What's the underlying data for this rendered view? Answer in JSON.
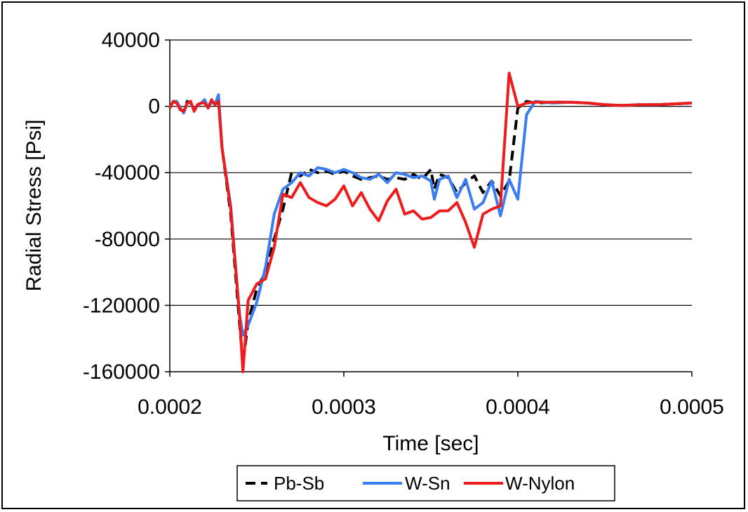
{
  "chart_data": {
    "type": "line",
    "xlabel": "Time [sec]",
    "ylabel": "Radial Stress [Psi]",
    "xlim": [
      0.0002,
      0.0005
    ],
    "ylim": [
      -160000,
      40000
    ],
    "x_ticks": [
      0.0002,
      0.0003,
      0.0004,
      0.0005
    ],
    "x_tick_labels": [
      "0.0002",
      "0.0003",
      "0.0004",
      "0.0005"
    ],
    "y_ticks": [
      40000,
      0,
      -40000,
      -80000,
      -120000,
      -160000
    ],
    "y_tick_labels": [
      "40000",
      "0",
      "-40000",
      "-80000",
      "-120000",
      "-160000"
    ],
    "grid": "horizontal",
    "legend_position": "bottom",
    "series": [
      {
        "name": "Pb-Sb",
        "color": "#000000",
        "dash": "dashed",
        "points": [
          [
            0.0002,
            -1000
          ],
          [
            0.000202,
            3000
          ],
          [
            0.000204,
            2000
          ],
          [
            0.000206,
            -2000
          ],
          [
            0.000208,
            -3000
          ],
          [
            0.00021,
            3000
          ],
          [
            0.000212,
            2000
          ],
          [
            0.000214,
            -2000
          ],
          [
            0.000216,
            1000
          ],
          [
            0.000218,
            2000
          ],
          [
            0.00022,
            3000
          ],
          [
            0.000222,
            -1000
          ],
          [
            0.000224,
            3000
          ],
          [
            0.000226,
            1000
          ],
          [
            0.000228,
            5000
          ],
          [
            0.00023,
            -25000
          ],
          [
            0.000235,
            -65000
          ],
          [
            0.00024,
            -130000
          ],
          [
            0.000242,
            -155000
          ],
          [
            0.000245,
            -130000
          ],
          [
            0.00025,
            -110000
          ],
          [
            0.000255,
            -100000
          ],
          [
            0.00026,
            -80000
          ],
          [
            0.000265,
            -62000
          ],
          [
            0.00027,
            -40000
          ],
          [
            0.000275,
            -42000
          ],
          [
            0.00028,
            -38000
          ],
          [
            0.000285,
            -40000
          ],
          [
            0.00029,
            -39000
          ],
          [
            0.000295,
            -41000
          ],
          [
            0.0003,
            -39000
          ],
          [
            0.000305,
            -42000
          ],
          [
            0.00031,
            -44000
          ],
          [
            0.000315,
            -43000
          ],
          [
            0.00032,
            -42000
          ],
          [
            0.000325,
            -44000
          ],
          [
            0.00033,
            -43000
          ],
          [
            0.000335,
            -44000
          ],
          [
            0.00034,
            -41000
          ],
          [
            0.000345,
            -44000
          ],
          [
            0.00035,
            -38000
          ],
          [
            0.000352,
            -50000
          ],
          [
            0.000355,
            -41000
          ],
          [
            0.00036,
            -43000
          ],
          [
            0.000365,
            -52000
          ],
          [
            0.00037,
            -46000
          ],
          [
            0.000375,
            -42000
          ],
          [
            0.00038,
            -52000
          ],
          [
            0.000385,
            -45000
          ],
          [
            0.00039,
            -54000
          ],
          [
            0.000395,
            -45000
          ],
          [
            0.0004,
            -1000
          ],
          [
            0.000405,
            3000
          ],
          [
            0.00041,
            2000
          ],
          [
            0.00042,
            2500
          ],
          [
            0.00043,
            2500
          ],
          [
            0.00044,
            2000
          ],
          [
            0.00045,
            1000
          ],
          [
            0.00046,
            500
          ],
          [
            0.00047,
            1000
          ],
          [
            0.00048,
            1000
          ],
          [
            0.00049,
            1500
          ],
          [
            0.0005,
            2000
          ]
        ]
      },
      {
        "name": "W-Sn",
        "color": "#3b7df0",
        "dash": "solid",
        "points": [
          [
            0.0002,
            -1000
          ],
          [
            0.000202,
            3000
          ],
          [
            0.000204,
            3000
          ],
          [
            0.000206,
            -1000
          ],
          [
            0.000208,
            -4000
          ],
          [
            0.00021,
            2000
          ],
          [
            0.000212,
            2000
          ],
          [
            0.000214,
            -2000
          ],
          [
            0.000216,
            1000
          ],
          [
            0.000218,
            2000
          ],
          [
            0.00022,
            4000
          ],
          [
            0.000222,
            -1000
          ],
          [
            0.000224,
            3000
          ],
          [
            0.000226,
            1000
          ],
          [
            0.000228,
            7000
          ],
          [
            0.00023,
            -25000
          ],
          [
            0.000235,
            -60000
          ],
          [
            0.00024,
            -125000
          ],
          [
            0.000242,
            -138000
          ],
          [
            0.000245,
            -132000
          ],
          [
            0.00025,
            -118000
          ],
          [
            0.000255,
            -97000
          ],
          [
            0.00026,
            -65000
          ],
          [
            0.000265,
            -50000
          ],
          [
            0.00027,
            -46000
          ],
          [
            0.000275,
            -40000
          ],
          [
            0.00028,
            -42000
          ],
          [
            0.000285,
            -37000
          ],
          [
            0.00029,
            -38000
          ],
          [
            0.000295,
            -40000
          ],
          [
            0.0003,
            -38000
          ],
          [
            0.000305,
            -40000
          ],
          [
            0.00031,
            -43000
          ],
          [
            0.000315,
            -44000
          ],
          [
            0.00032,
            -41000
          ],
          [
            0.000325,
            -46000
          ],
          [
            0.00033,
            -40000
          ],
          [
            0.000335,
            -41000
          ],
          [
            0.00034,
            -43000
          ],
          [
            0.000345,
            -42000
          ],
          [
            0.00035,
            -45000
          ],
          [
            0.000352,
            -56000
          ],
          [
            0.000355,
            -44000
          ],
          [
            0.00036,
            -42000
          ],
          [
            0.000365,
            -55000
          ],
          [
            0.00037,
            -44000
          ],
          [
            0.000375,
            -62000
          ],
          [
            0.00038,
            -58000
          ],
          [
            0.000385,
            -45000
          ],
          [
            0.00039,
            -66000
          ],
          [
            0.000395,
            -44000
          ],
          [
            0.0004,
            -56000
          ],
          [
            0.000405,
            -5000
          ],
          [
            0.00041,
            3000
          ],
          [
            0.00042,
            2000
          ],
          [
            0.00043,
            2500
          ],
          [
            0.00044,
            2000
          ],
          [
            0.00045,
            1000
          ],
          [
            0.00046,
            500
          ],
          [
            0.00047,
            1000
          ],
          [
            0.00048,
            1000
          ],
          [
            0.00049,
            1500
          ],
          [
            0.0005,
            2000
          ]
        ]
      },
      {
        "name": "W-Nylon",
        "color": "#ee1c1c",
        "dash": "solid",
        "points": [
          [
            0.0002,
            -1000
          ],
          [
            0.000202,
            3000
          ],
          [
            0.000204,
            2000
          ],
          [
            0.000206,
            -2000
          ],
          [
            0.000208,
            -3000
          ],
          [
            0.00021,
            2000
          ],
          [
            0.000212,
            3000
          ],
          [
            0.000214,
            -3000
          ],
          [
            0.000216,
            1000
          ],
          [
            0.000218,
            2000
          ],
          [
            0.00022,
            2000
          ],
          [
            0.000222,
            -1000
          ],
          [
            0.000224,
            4000
          ],
          [
            0.000226,
            1000
          ],
          [
            0.000228,
            3000
          ],
          [
            0.00023,
            -25000
          ],
          [
            0.000235,
            -62000
          ],
          [
            0.00024,
            -125000
          ],
          [
            0.000242,
            -160000
          ],
          [
            0.000245,
            -117000
          ],
          [
            0.00025,
            -107000
          ],
          [
            0.000255,
            -104000
          ],
          [
            0.00026,
            -85000
          ],
          [
            0.000265,
            -53000
          ],
          [
            0.00027,
            -55000
          ],
          [
            0.000275,
            -46000
          ],
          [
            0.00028,
            -55000
          ],
          [
            0.000285,
            -58000
          ],
          [
            0.00029,
            -60000
          ],
          [
            0.000295,
            -56000
          ],
          [
            0.0003,
            -48000
          ],
          [
            0.000305,
            -60000
          ],
          [
            0.00031,
            -52000
          ],
          [
            0.000315,
            -62000
          ],
          [
            0.00032,
            -69000
          ],
          [
            0.000325,
            -57000
          ],
          [
            0.00033,
            -50000
          ],
          [
            0.000335,
            -65000
          ],
          [
            0.00034,
            -63000
          ],
          [
            0.000345,
            -68000
          ],
          [
            0.00035,
            -67000
          ],
          [
            0.000355,
            -63000
          ],
          [
            0.00036,
            -63000
          ],
          [
            0.000365,
            -58000
          ],
          [
            0.00037,
            -70000
          ],
          [
            0.000375,
            -85000
          ],
          [
            0.00038,
            -65000
          ],
          [
            0.000385,
            -62000
          ],
          [
            0.00039,
            -60000
          ],
          [
            0.000395,
            20000
          ],
          [
            0.0004,
            0
          ],
          [
            0.000405,
            2000
          ],
          [
            0.00041,
            2500
          ],
          [
            0.00042,
            2500
          ],
          [
            0.00043,
            2500
          ],
          [
            0.00044,
            2000
          ],
          [
            0.00045,
            1000
          ],
          [
            0.00046,
            500
          ],
          [
            0.00047,
            1000
          ],
          [
            0.00048,
            1000
          ],
          [
            0.00049,
            1500
          ],
          [
            0.0005,
            2000
          ]
        ]
      }
    ]
  }
}
